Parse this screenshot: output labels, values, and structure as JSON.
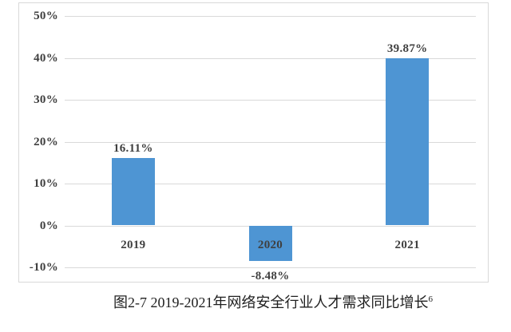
{
  "caption": {
    "text": "图2-7 2019-2021年网络安全行业人才需求同比增长",
    "footnote": "6"
  },
  "colors": {
    "bar": "#4e95d3",
    "gridline": "#d9d9d9",
    "frame_border": "#d9d9d9",
    "axis_text": "#3f3f3f",
    "caption_text": "#1f1f1f"
  },
  "chart_data": {
    "type": "bar",
    "title": "图2-7 2019-2021年网络安全行业人才需求同比增长",
    "categories": [
      "2019",
      "2020",
      "2021"
    ],
    "values": [
      16.11,
      -8.48,
      39.87
    ],
    "data_labels": [
      "16.11%",
      "-8.48%",
      "39.87%"
    ],
    "yticks": [
      {
        "value": 50,
        "label": "50%"
      },
      {
        "value": 40,
        "label": "40%"
      },
      {
        "value": 30,
        "label": "30%"
      },
      {
        "value": 20,
        "label": "20%"
      },
      {
        "value": 10,
        "label": "10%"
      },
      {
        "value": 0,
        "label": "0%"
      },
      {
        "value": -10,
        "label": "-10%"
      }
    ],
    "ylim": [
      -10,
      50
    ],
    "xlabel": "",
    "ylabel": "",
    "grid": true,
    "legend": false
  }
}
